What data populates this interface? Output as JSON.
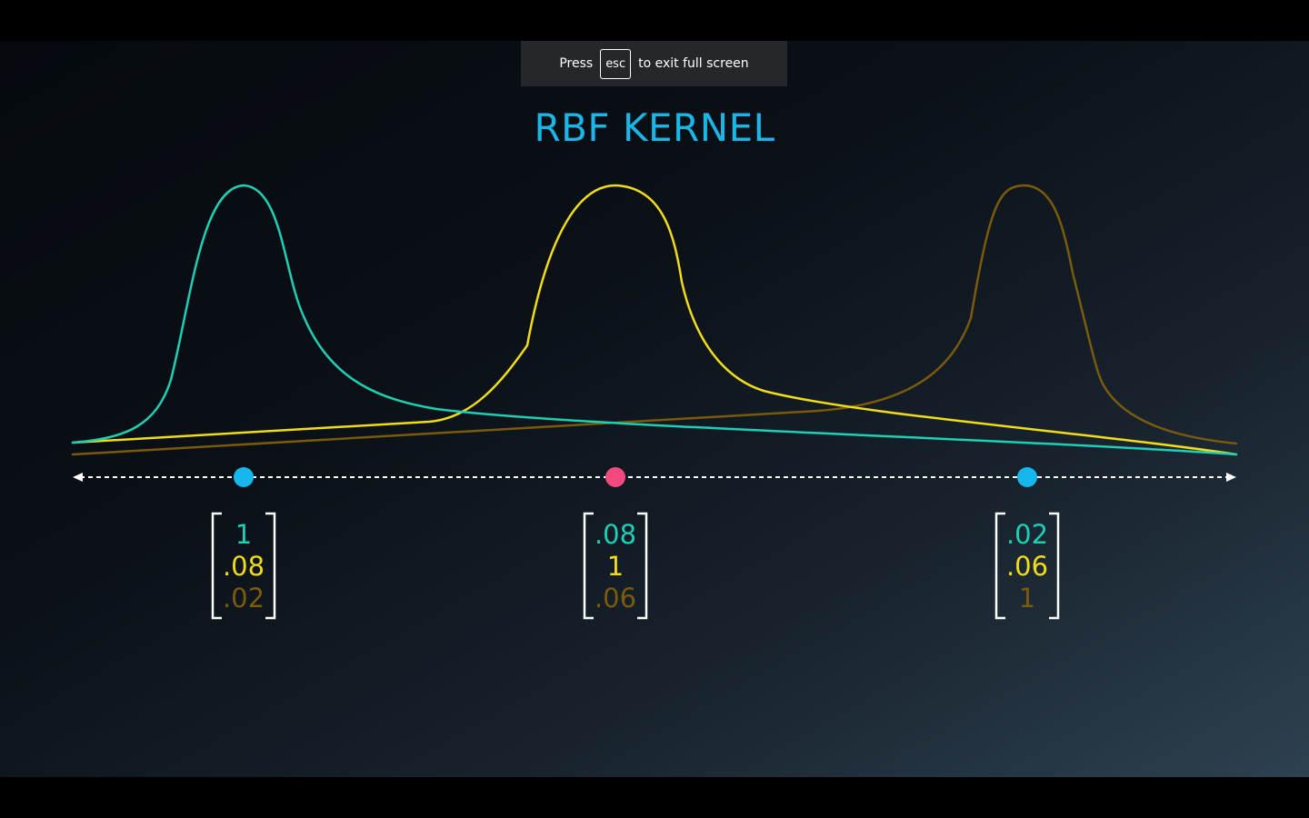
{
  "fullscreen_banner": {
    "prefix": "Press",
    "key": "esc",
    "suffix": "to exit full screen"
  },
  "slide": {
    "title": "RBF KERNEL"
  },
  "colors": {
    "title": "#1ab6e8",
    "teal": "#1ecfb6",
    "yellow": "#f0dc19",
    "brown": "#7a5a0c",
    "blue_point": "#15b7ec",
    "pink_point": "#f24a7e",
    "axis": "#ffffff",
    "bracket": "#ffffff"
  },
  "chart_data": {
    "type": "line",
    "title": "RBF KERNEL",
    "xlabel": "",
    "ylabel": "",
    "series": [
      {
        "color": "teal",
        "center": 1,
        "peak": 1
      },
      {
        "color": "yellow",
        "center": 2,
        "peak": 1
      },
      {
        "color": "brown",
        "center": 3,
        "peak": 1
      }
    ],
    "points": [
      {
        "x": 1,
        "color": "blue"
      },
      {
        "x": 2,
        "color": "pink"
      },
      {
        "x": 3,
        "color": "blue"
      }
    ],
    "vectors": [
      {
        "values": [
          "1",
          ".08",
          ".02"
        ]
      },
      {
        "values": [
          ".08",
          "1",
          ".06"
        ]
      },
      {
        "values": [
          ".02",
          ".06",
          "1"
        ]
      }
    ]
  }
}
